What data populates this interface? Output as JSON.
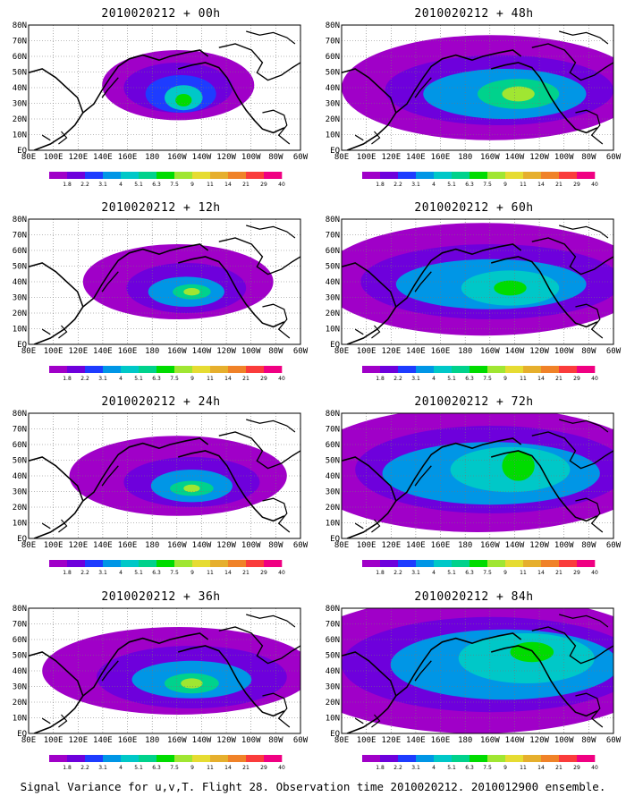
{
  "footer": "Signal Variance for u,v,T. Flight 28. Observation time 2010020212. 2010012900 ensemble.",
  "chart_data": {
    "type": "heatmap",
    "lat_ticks": [
      "EQ",
      "10N",
      "20N",
      "30N",
      "40N",
      "50N",
      "60N",
      "70N",
      "80N"
    ],
    "lon_ticks": [
      "80E",
      "100E",
      "120E",
      "140E",
      "160E",
      "180",
      "160W",
      "140W",
      "120W",
      "100W",
      "80W",
      "60W"
    ],
    "colorbar": {
      "labels": [
        "1.8",
        "2.2",
        "3.1",
        "4",
        "5.1",
        "6.3",
        "7.5",
        "9",
        "11",
        "14",
        "21",
        "29",
        "40"
      ],
      "colors": [
        "#a000c8",
        "#6e00dc",
        "#1e3cff",
        "#0096e6",
        "#00c8c8",
        "#00d28c",
        "#00dc00",
        "#a0e632",
        "#e6dc32",
        "#e6af2d",
        "#f08228",
        "#fa3c3c",
        "#f00082"
      ]
    },
    "panels": [
      {
        "title": "2010020212 + 00h",
        "lead_hours": 0,
        "max_level": "9"
      },
      {
        "title": "2010020212 + 48h",
        "lead_hours": 48,
        "max_level": "9"
      },
      {
        "title": "2010020212 + 12h",
        "lead_hours": 12,
        "max_level": "9"
      },
      {
        "title": "2010020212 + 60h",
        "lead_hours": 60,
        "max_level": "9"
      },
      {
        "title": "2010020212 + 24h",
        "lead_hours": 24,
        "max_level": "9"
      },
      {
        "title": "2010020212 + 72h",
        "lead_hours": 72,
        "max_level": "9"
      },
      {
        "title": "2010020212 + 36h",
        "lead_hours": 36,
        "max_level": "9"
      },
      {
        "title": "2010020212 + 84h",
        "lead_hours": 84,
        "max_level": "9"
      }
    ]
  }
}
